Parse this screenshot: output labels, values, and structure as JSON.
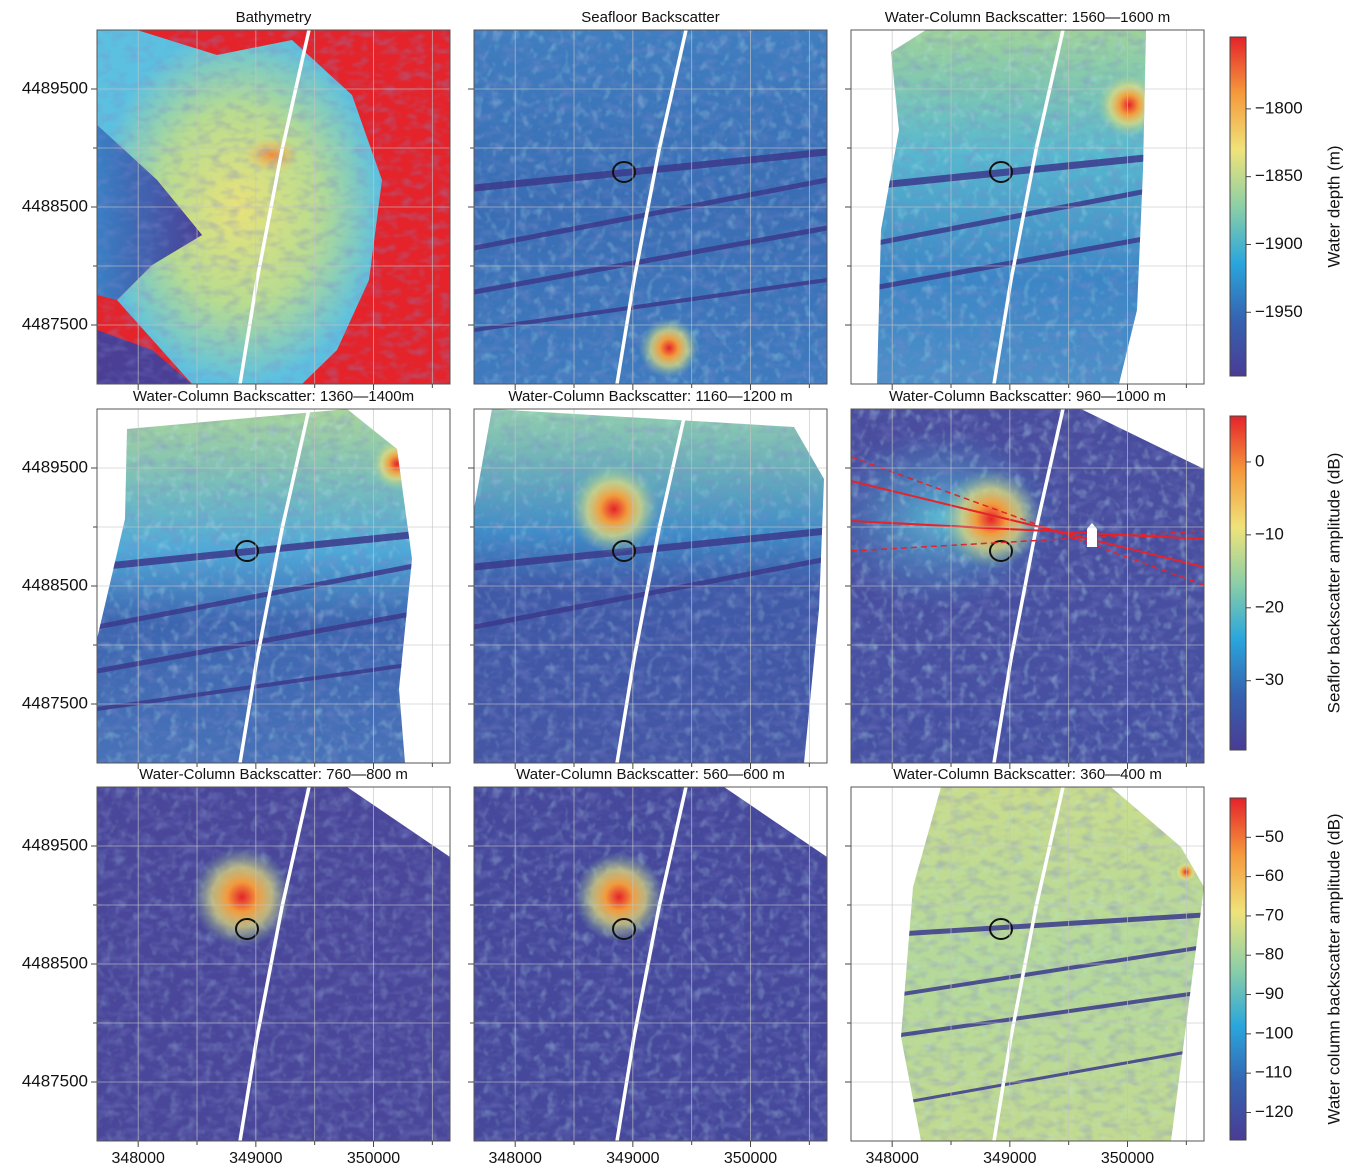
{
  "chart_data": {
    "type": "heatmap-grid",
    "xlim": [
      347650,
      350650
    ],
    "ylim": [
      4487000,
      4490000
    ],
    "xticks": [
      348000,
      349000,
      350000
    ],
    "yticks": [
      4487500,
      4488500,
      4489500
    ],
    "minor_xticks": [
      348500,
      349500,
      350500
    ],
    "minor_yticks": [
      4488000,
      4489000
    ],
    "grid": true,
    "colormap": [
      "#4a3c94",
      "#3563b0",
      "#2aa6dc",
      "#8ccfa6",
      "#efe37a",
      "#f59a3c",
      "#e4232a"
    ],
    "panels": [
      {
        "title": "Bathymetry"
      },
      {
        "title": "Seafloor Backscatter"
      },
      {
        "title": "Water-Column Backscatter: 1560—1600 m"
      },
      {
        "title": "Water-Column Backscatter: 1360—1400m"
      },
      {
        "title": "Water-Column Backscatter: 1160—1200 m"
      },
      {
        "title": "Water-Column Backscatter: 960—1000 m"
      },
      {
        "title": "Water-Column Backscatter: 760—800 m"
      },
      {
        "title": "Water-Column Backscatter: 560—600 m"
      },
      {
        "title": "Water-Column Backscatter: 360—400 m"
      }
    ],
    "colorbars": [
      {
        "label": "Water depth (m)",
        "lim": [
          -1997,
          -1747
        ],
        "ticks": [
          {
            "value": -1800,
            "label": "−1800"
          },
          {
            "value": -1850,
            "label": "−1850"
          },
          {
            "value": -1900,
            "label": "−1900"
          },
          {
            "value": -1950,
            "label": "−1950"
          }
        ]
      },
      {
        "label": "Seaflor backscatter amplitude (dB)",
        "lim": [
          -39.5,
          6.3
        ],
        "ticks": [
          0,
          {
            "value": -10,
            "label": "−10"
          },
          {
            "value": -20,
            "label": "−20"
          },
          {
            "value": -30,
            "label": "−30"
          }
        ]
      },
      {
        "label": "Water column backscatter amplitude (dB)",
        "lim": [
          -127,
          -40
        ],
        "ticks": [
          {
            "value": -50,
            "label": "−50"
          },
          {
            "value": -60,
            "label": "−60"
          },
          {
            "value": -70,
            "label": "−70"
          },
          {
            "value": -80,
            "label": "−80"
          },
          {
            "value": -90,
            "label": "−90"
          },
          {
            "value": -100,
            "label": "−100"
          },
          {
            "value": -110,
            "label": "−110"
          },
          {
            "value": -120,
            "label": "−120"
          }
        ]
      }
    ]
  }
}
